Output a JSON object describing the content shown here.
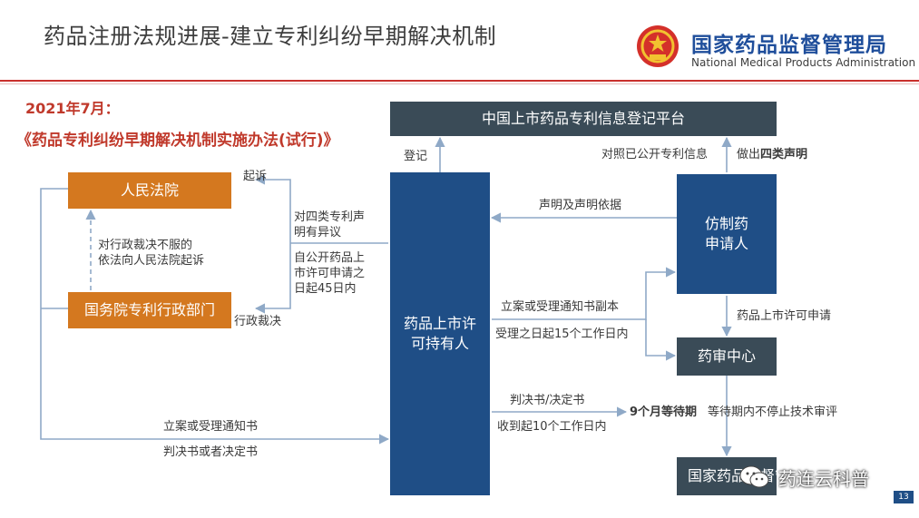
{
  "header": {
    "title": "药品注册法规进展-建立专利纠纷早期解决机制",
    "brand_cn": "国家药品监督管理局",
    "brand_en": "National Medical Products Administration"
  },
  "intro": {
    "date": "2021年7月：",
    "law": "《药品专利纠纷早期解决机制实施办法(试行)》"
  },
  "boxes": {
    "platform": "中国上市药品专利信息登记平台",
    "holder_line1": "药品上市许",
    "holder_line2": "可持有人",
    "applicant_line1": "仿制药",
    "applicant_line2": "申请人",
    "cde": "药审中心",
    "court": "人民法院",
    "patent_dept": "国务院专利行政部门",
    "nmpa": "国家药品监督管理局"
  },
  "labels": {
    "register": "登记",
    "compare": "对照已公开专利信息",
    "declare_prefix": "做出",
    "declare_bold": "四类声明",
    "statement": "声明及声明依据",
    "notice_copy": "立案或受理通知书副本",
    "within15": "受理之日起15个工作日内",
    "marketing_app": "药品上市许可申请",
    "sue": "起诉",
    "objection_l1": "对四类专利声",
    "objection_l2": "明有异议",
    "within45_l1": "自公开药品上",
    "within45_l2": "市许可申请之",
    "within45_l3": "日起45日内",
    "admin_l1": "对行政裁决不服的",
    "admin_l2": "依法向人民法院起诉",
    "admin_ruling": "行政裁决",
    "judgment": "判决书/决定书",
    "within10": "收到起10个工作日内",
    "wait_bold": "9个月等待期",
    "no_stop": "等待期内不停止技术审评",
    "filing_notice": "立案或受理通知书",
    "judgment2": "判决书或者决定书"
  },
  "watermark": "药连云科普",
  "page_number": "13",
  "colors": {
    "accent_red": "#c0392b",
    "navy": "#1f4e86",
    "dark_slate": "#3a4b57",
    "orange": "#d4781f",
    "arrow": "#8fa9c7"
  }
}
